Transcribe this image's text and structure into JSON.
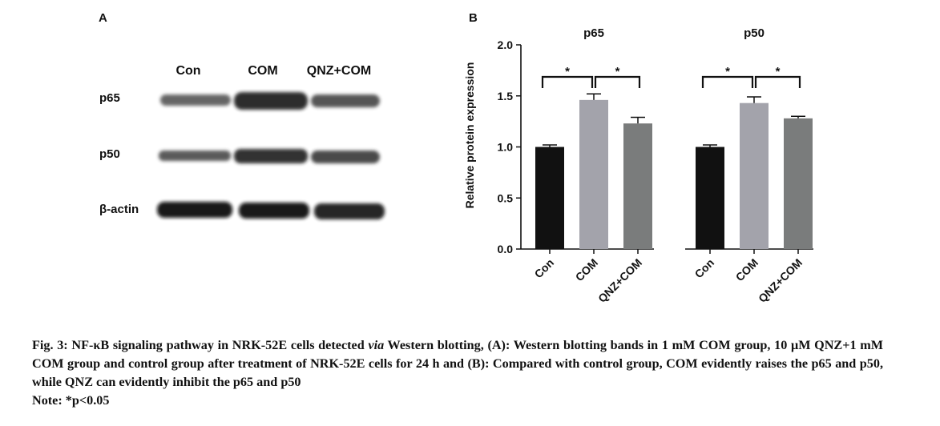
{
  "panel_a_label": "A",
  "panel_b_label": "B",
  "blot": {
    "lanes": [
      "Con",
      "COM",
      "QNZ+COM"
    ],
    "rows": [
      "p65",
      "p50",
      "β-actin"
    ]
  },
  "chart_data": {
    "type": "bar",
    "groups": [
      "p65",
      "p50"
    ],
    "categories": [
      "Con",
      "COM",
      "QNZ+COM"
    ],
    "ylabel": "Relative protein expression",
    "ylim": [
      0,
      2.0
    ],
    "yticks": [
      "0.0",
      "0.5",
      "1.0",
      "1.5",
      "2.0"
    ],
    "values": {
      "p65": [
        1.0,
        1.46,
        1.23
      ],
      "p50": [
        1.0,
        1.43,
        1.28
      ]
    },
    "errors": {
      "p65": [
        0.02,
        0.06,
        0.06
      ],
      "p50": [
        0.02,
        0.06,
        0.02
      ]
    },
    "bar_colors": [
      "#111111",
      "#a3a3ab",
      "#7a7c7c"
    ],
    "significance_mark": "*",
    "grid": false
  },
  "caption": {
    "fig_label": "Fig. 3:",
    "text_before_italic": " NF-κB signaling pathway in NRK-52E cells detected ",
    "italic": "via",
    "text_after_italic": " Western blotting, (A): Western blotting bands in 1 mM COM group, 10 μM QNZ+1 mM COM group and control group after treatment of NRK-52E cells for 24 h and (B): Compared with control group, COM evidently raises the p65 and p50, while QNZ can evidently inhibit the p65 and p50",
    "note": "Note: *p<0.05"
  }
}
